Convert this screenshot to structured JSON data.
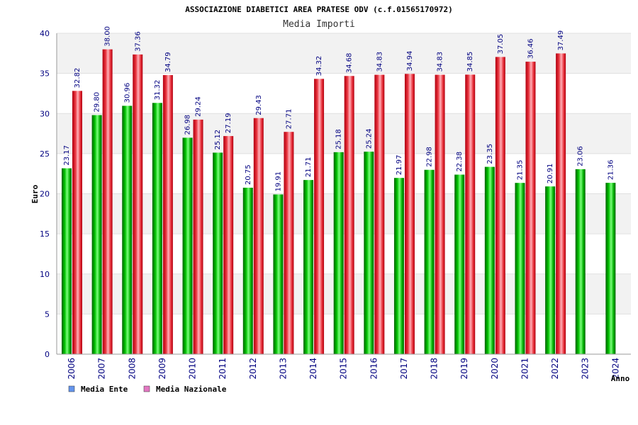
{
  "chart_data": {
    "type": "bar",
    "title": "ASSOCIAZIONE DIABETICI AREA PRATESE ODV (c.f.01565170972)",
    "subtitle": "Media Importi",
    "xlabel": "Anno",
    "ylabel": "Euro",
    "ylim": [
      0,
      40
    ],
    "yticks": [
      0,
      5,
      10,
      15,
      20,
      25,
      30,
      35,
      40
    ],
    "grid": true,
    "legend_position": "bottom-left",
    "categories": [
      "2006",
      "2007",
      "2008",
      "2009",
      "2010",
      "2011",
      "2012",
      "2013",
      "2014",
      "2015",
      "2016",
      "2017",
      "2018",
      "2019",
      "2020",
      "2021",
      "2022",
      "2023",
      "2024"
    ],
    "series": [
      {
        "name": "Media Ente",
        "legend_color": "#6495ed",
        "bar_color": "#00b000",
        "values": [
          23.17,
          29.8,
          30.96,
          31.32,
          26.98,
          25.12,
          20.75,
          19.91,
          21.71,
          25.18,
          25.24,
          21.97,
          22.98,
          22.38,
          23.35,
          21.35,
          20.91,
          23.06,
          21.36
        ],
        "labels": [
          "23.17",
          "29.80",
          "30.96",
          "31.32",
          "26.98",
          "25.12",
          "20.75",
          "19.91",
          "21.71",
          "25.18",
          "25.24",
          "21.97",
          "22.98",
          "22.38",
          "23.35",
          "21.35",
          "20.91",
          "23.06",
          "21.36"
        ]
      },
      {
        "name": "Media Nazionale",
        "legend_color": "#e377c2",
        "bar_color": "#e8303a",
        "values": [
          32.82,
          38.0,
          37.36,
          34.79,
          29.24,
          27.19,
          29.43,
          27.71,
          34.32,
          34.68,
          34.83,
          34.94,
          34.83,
          34.85,
          37.05,
          36.46,
          37.49,
          null,
          null
        ],
        "labels": [
          "32.82",
          "38.00",
          "37.36",
          "34.79",
          "29.24",
          "27.19",
          "29.43",
          "27.71",
          "34.32",
          "34.68",
          "34.83",
          "34.94",
          "34.83",
          "34.85",
          "37.05",
          "36.46",
          "37.49",
          "",
          ""
        ]
      }
    ]
  }
}
